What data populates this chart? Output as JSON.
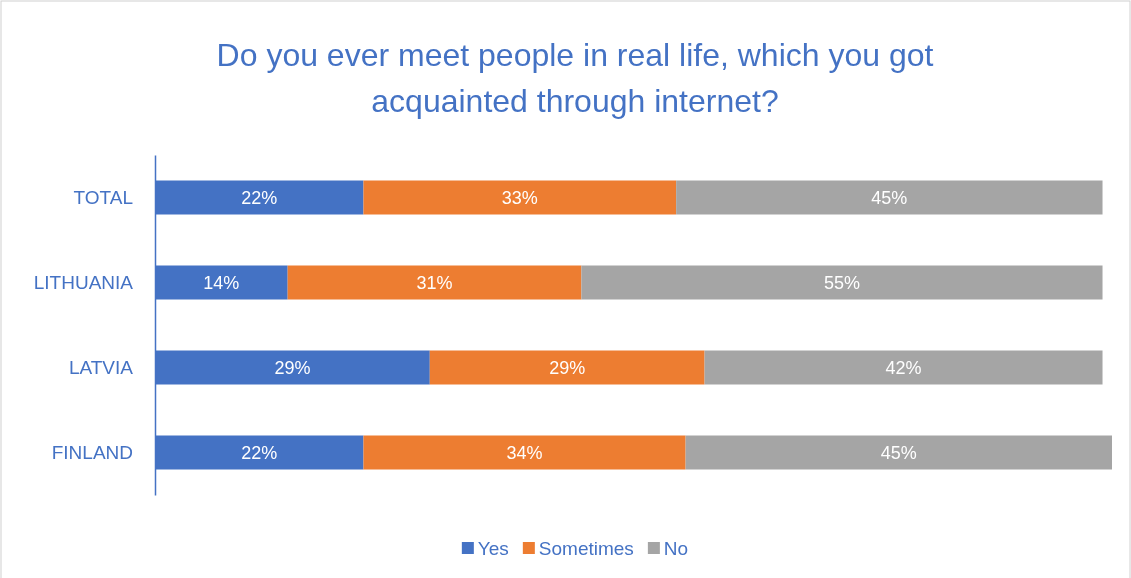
{
  "chart_data": {
    "type": "bar",
    "orientation": "horizontal",
    "stacked": true,
    "title": "Do you ever meet people in real life, which you got acquainted through internet?",
    "categories": [
      "TOTAL",
      "LITHUANIA",
      "LATVIA",
      "FINLAND"
    ],
    "series": [
      {
        "name": "Yes",
        "color": "#4472c4",
        "values": [
          22,
          14,
          29,
          22
        ],
        "value_labels": [
          "22%",
          "14%",
          "29%",
          "22%"
        ]
      },
      {
        "name": "Sometimes",
        "color": "#ed7d31",
        "values": [
          33,
          31,
          29,
          34
        ],
        "value_labels": [
          "33%",
          "31%",
          "29%",
          "34%"
        ]
      },
      {
        "name": "No",
        "color": "#a5a5a5",
        "values": [
          45,
          55,
          42,
          45
        ],
        "value_labels": [
          "45%",
          "55%",
          "42%",
          "45%"
        ]
      }
    ],
    "tick_labels": "y",
    "legend": "bottom"
  }
}
